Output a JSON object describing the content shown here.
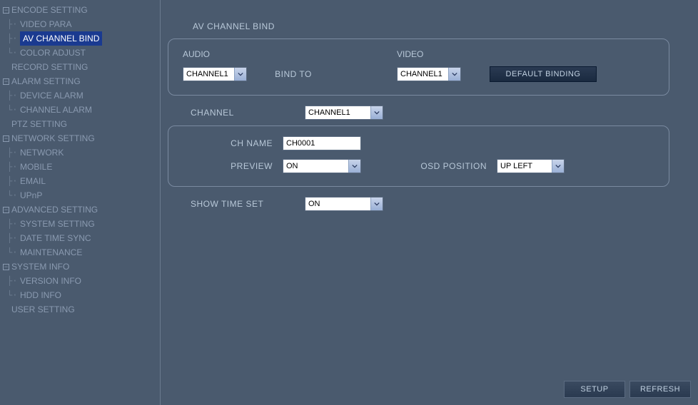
{
  "sidebar": {
    "items": [
      {
        "label": "ENCODE SETTING",
        "hasExpander": true,
        "expanded": true,
        "children": [
          {
            "label": "VIDEO PARA"
          },
          {
            "label": "AV CHANNEL BIND",
            "selected": true
          },
          {
            "label": "COLOR ADJUST"
          }
        ]
      },
      {
        "label": "RECORD SETTING",
        "hasExpander": false
      },
      {
        "label": "ALARM SETTING",
        "hasExpander": true,
        "expanded": true,
        "children": [
          {
            "label": "DEVICE ALARM"
          },
          {
            "label": "CHANNEL ALARM"
          }
        ]
      },
      {
        "label": "PTZ SETTING",
        "hasExpander": false
      },
      {
        "label": "NETWORK SETTING",
        "hasExpander": true,
        "expanded": true,
        "children": [
          {
            "label": "NETWORK"
          },
          {
            "label": "MOBILE"
          },
          {
            "label": "EMAIL"
          },
          {
            "label": "UPnP"
          }
        ]
      },
      {
        "label": "ADVANCED SETTING",
        "hasExpander": true,
        "expanded": true,
        "children": [
          {
            "label": "SYSTEM SETTING"
          },
          {
            "label": "DATE TIME SYNC"
          },
          {
            "label": "MAINTENANCE"
          }
        ]
      },
      {
        "label": "SYSTEM INFO",
        "hasExpander": true,
        "expanded": true,
        "children": [
          {
            "label": "VERSION INFO"
          },
          {
            "label": "HDD INFO"
          }
        ]
      },
      {
        "label": "USER SETTING",
        "hasExpander": false
      }
    ]
  },
  "page": {
    "title": "AV CHANNEL BIND",
    "bind_panel": {
      "audio_label": "AUDIO",
      "video_label": "VIDEO",
      "bind_to_label": "BIND TO",
      "audio_value": "CHANNEL1",
      "video_value": "CHANNEL1",
      "default_button": "DEFAULT BINDING"
    },
    "channel_label": "CHANNEL",
    "channel_value": "CHANNEL1",
    "ch_panel": {
      "ch_name_label": "CH NAME",
      "ch_name_value": "CH0001",
      "preview_label": "PREVIEW",
      "preview_value": "ON",
      "osd_label": "OSD POSITION",
      "osd_value": "UP LEFT"
    },
    "show_time_label": "SHOW TIME SET",
    "show_time_value": "ON",
    "footer": {
      "setup": "SETUP",
      "refresh": "REFRESH"
    }
  },
  "colors": {
    "bg": "#4a5a6e",
    "border": "#7a8aa0",
    "text": "#b8c8d8",
    "selected_bg": "#1a3a90",
    "selected_fg": "#ffffff",
    "input_bg": "#ffffff"
  }
}
